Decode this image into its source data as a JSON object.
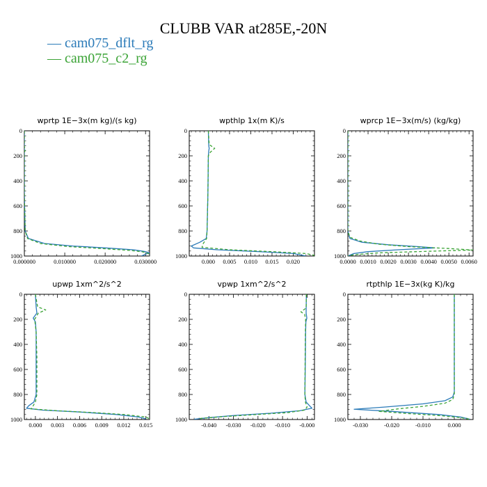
{
  "figure": {
    "title": "CLUBB VAR at285E,-20N",
    "legend": [
      {
        "name": "cam075_dflt_rg",
        "color": "#2a7ab8",
        "dash": "solid",
        "prefix": "—"
      },
      {
        "name": "cam075_c2_rg",
        "color": "#3aa335",
        "dash": "dashed",
        "prefix": "—"
      }
    ]
  },
  "chart_data": [
    {
      "type": "line",
      "title": "wprtp  1E−3x(m kg)/(s kg)",
      "xlim": [
        0,
        0.031
      ],
      "ylim": [
        1000,
        0
      ],
      "xticks": [
        0,
        0.01,
        0.02,
        0.03
      ],
      "xtick_labels": [
        "0.000000",
        "0.010000",
        "0.020000",
        "0.030000"
      ],
      "yticks": [
        0,
        200,
        400,
        600,
        800,
        1000
      ],
      "ytick_labels": [
        "0",
        "200",
        "400",
        "600",
        "800",
        "1000"
      ],
      "series": [
        {
          "name": "cam075_dflt_rg",
          "points": [
            [
              0,
              0
            ],
            [
              0,
              500
            ],
            [
              0.0002,
              800
            ],
            [
              0.001,
              860
            ],
            [
              0.005,
              900
            ],
            [
              0.012,
              920
            ],
            [
              0.02,
              935
            ],
            [
              0.027,
              950
            ],
            [
              0.03,
              965
            ],
            [
              0.031,
              975
            ],
            [
              0.03,
              985
            ],
            [
              0.029,
              1000
            ]
          ]
        },
        {
          "name": "cam075_c2_rg",
          "points": [
            [
              0,
              0
            ],
            [
              0,
              130
            ],
            [
              0.0003,
              150
            ],
            [
              0,
              170
            ],
            [
              0,
              500
            ],
            [
              0.0002,
              800
            ],
            [
              0.0008,
              860
            ],
            [
              0.004,
              900
            ],
            [
              0.011,
              925
            ],
            [
              0.019,
              940
            ],
            [
              0.026,
              955
            ],
            [
              0.029,
              965
            ],
            [
              0.03,
              972
            ],
            [
              0.031,
              985
            ],
            [
              0.031,
              1000
            ]
          ]
        }
      ]
    },
    {
      "type": "line",
      "title": "wpthlp  1x(m K)/s",
      "xlim": [
        -0.0045,
        0.025
      ],
      "ylim": [
        1000,
        0
      ],
      "xticks": [
        0,
        0.005,
        0.01,
        0.015,
        0.02
      ],
      "xtick_labels": [
        "0.000",
        "0.005",
        "0.010",
        "0.015",
        "0.020"
      ],
      "yticks": [
        0,
        200,
        400,
        600,
        800,
        1000
      ],
      "ytick_labels": [
        "0",
        "200",
        "400",
        "600",
        "800",
        "1000"
      ],
      "series": [
        {
          "name": "cam075_dflt_rg",
          "points": [
            [
              0,
              0
            ],
            [
              0.0001,
              120
            ],
            [
              0.0002,
              140
            ],
            [
              0.0001,
              160
            ],
            [
              0,
              200
            ],
            [
              -0.0001,
              500
            ],
            [
              -0.0003,
              800
            ],
            [
              -0.0005,
              860
            ],
            [
              -0.002,
              890
            ],
            [
              -0.004,
              920
            ],
            [
              -0.0035,
              935
            ],
            [
              0.002,
              950
            ],
            [
              0.012,
              965
            ],
            [
              0.02,
              980
            ],
            [
              0.023,
              1000
            ]
          ]
        },
        {
          "name": "cam075_c2_rg",
          "points": [
            [
              0,
              0
            ],
            [
              0.0002,
              110
            ],
            [
              0.0015,
              140
            ],
            [
              0.0005,
              170
            ],
            [
              0,
              200
            ],
            [
              -0.0001,
              500
            ],
            [
              -0.0003,
              800
            ],
            [
              -0.0004,
              860
            ],
            [
              -0.0012,
              900
            ],
            [
              -0.0015,
              930
            ],
            [
              0.005,
              950
            ],
            [
              0.015,
              965
            ],
            [
              0.023,
              980
            ],
            [
              0.025,
              995
            ]
          ]
        }
      ]
    },
    {
      "type": "line",
      "title": "wprcp  1E−3x(m/s) (kg/kg)",
      "xlim": [
        0,
        0.0062
      ],
      "ylim": [
        1000,
        0
      ],
      "xticks": [
        0,
        0.001,
        0.002,
        0.003,
        0.004,
        0.005,
        0.006
      ],
      "xtick_labels": [
        "0.0000",
        "0.0010",
        "0.0020",
        "0.0030",
        "0.0040",
        "0.0050",
        "0.0060"
      ],
      "yticks": [
        0,
        200,
        400,
        600,
        800,
        1000
      ],
      "ytick_labels": [
        "0",
        "200",
        "400",
        "600",
        "800",
        "1000"
      ],
      "series": [
        {
          "name": "cam075_dflt_rg",
          "points": [
            [
              0,
              0
            ],
            [
              0,
              800
            ],
            [
              0.0001,
              860
            ],
            [
              0.0007,
              890
            ],
            [
              0.002,
              910
            ],
            [
              0.0035,
              925
            ],
            [
              0.0043,
              935
            ],
            [
              0.0025,
              950
            ],
            [
              0.001,
              965
            ],
            [
              0.0003,
              980
            ],
            [
              0,
              1000
            ]
          ]
        },
        {
          "name": "cam075_c2_rg",
          "points": [
            [
              0,
              0
            ],
            [
              0,
              800
            ],
            [
              0.0001,
              850
            ],
            [
              0.0006,
              880
            ],
            [
              0.0015,
              905
            ],
            [
              0.003,
              925
            ],
            [
              0.005,
              940
            ],
            [
              0.0062,
              952
            ],
            [
              0.004,
              962
            ],
            [
              0.0015,
              975
            ],
            [
              0.0003,
              990
            ],
            [
              0,
              1000
            ]
          ]
        }
      ]
    },
    {
      "type": "line",
      "title": "upwp  1xm^2/s^2",
      "xlim": [
        -0.0015,
        0.0155
      ],
      "ylim": [
        1000,
        0
      ],
      "xticks": [
        0,
        0.003,
        0.006,
        0.009,
        0.012,
        0.015
      ],
      "xtick_labels": [
        "0.000",
        "0.003",
        "0.006",
        "0.009",
        "0.012",
        "0.015"
      ],
      "yticks": [
        0,
        200,
        400,
        600,
        800,
        1000
      ],
      "ytick_labels": [
        "0",
        "200",
        "400",
        "600",
        "800",
        "1000"
      ],
      "series": [
        {
          "name": "cam075_dflt_rg",
          "points": [
            [
              0,
              0
            ],
            [
              0.0001,
              100
            ],
            [
              0.0002,
              150
            ],
            [
              -0.0003,
              190
            ],
            [
              0,
              220
            ],
            [
              0.0001,
              300
            ],
            [
              0.0001,
              500
            ],
            [
              0.0001,
              800
            ],
            [
              -0.0002,
              860
            ],
            [
              -0.0009,
              890
            ],
            [
              -0.0012,
              910
            ],
            [
              0.001,
              925
            ],
            [
              0.006,
              940
            ],
            [
              0.011,
              960
            ],
            [
              0.014,
              980
            ],
            [
              0.015,
              995
            ]
          ]
        },
        {
          "name": "cam075_c2_rg",
          "points": [
            [
              0,
              0
            ],
            [
              0.0003,
              100
            ],
            [
              0.0014,
              125
            ],
            [
              0.0004,
              150
            ],
            [
              -0.0001,
              200
            ],
            [
              0.0001,
              300
            ],
            [
              0.0002,
              500
            ],
            [
              0.0002,
              800
            ],
            [
              0,
              860
            ],
            [
              -0.0004,
              900
            ],
            [
              -0.0006,
              915
            ],
            [
              0.003,
              930
            ],
            [
              0.008,
              945
            ],
            [
              0.012,
              960
            ],
            [
              0.015,
              980
            ],
            [
              0.0155,
              995
            ]
          ]
        }
      ]
    },
    {
      "type": "line",
      "title": "vpwp  1xm^2/s^2",
      "xlim": [
        -0.048,
        0.003
      ],
      "ylim": [
        1000,
        0
      ],
      "xticks": [
        -0.04,
        -0.03,
        -0.02,
        -0.01,
        0
      ],
      "xtick_labels": [
        "-0.040",
        "-0.030",
        "-0.020",
        "-0.010",
        "-0.000"
      ],
      "yticks": [
        0,
        200,
        400,
        600,
        800,
        1000
      ],
      "ytick_labels": [
        "0",
        "200",
        "400",
        "600",
        "800",
        "1000"
      ],
      "series": [
        {
          "name": "cam075_dflt_rg",
          "points": [
            [
              -0.0003,
              0
            ],
            [
              -0.0004,
              150
            ],
            [
              -0.0001,
              190
            ],
            [
              -0.0005,
              220
            ],
            [
              -0.0006,
              300
            ],
            [
              -0.0007,
              500
            ],
            [
              -0.0009,
              800
            ],
            [
              -0.0004,
              860
            ],
            [
              0.001,
              890
            ],
            [
              0.002,
              910
            ],
            [
              -0.003,
              930
            ],
            [
              -0.015,
              950
            ],
            [
              -0.03,
              968
            ],
            [
              -0.04,
              985
            ],
            [
              -0.046,
              998
            ]
          ]
        },
        {
          "name": "cam075_c2_rg",
          "points": [
            [
              -0.0003,
              0
            ],
            [
              -0.0004,
              110
            ],
            [
              -0.0025,
              140
            ],
            [
              -0.001,
              160
            ],
            [
              -0.0006,
              200
            ],
            [
              -0.0007,
              300
            ],
            [
              -0.0008,
              500
            ],
            [
              -0.0009,
              800
            ],
            [
              -0.0007,
              860
            ],
            [
              0,
              900
            ],
            [
              -0.001,
              925
            ],
            [
              -0.008,
              945
            ],
            [
              -0.022,
              962
            ],
            [
              -0.035,
              978
            ],
            [
              -0.044,
              992
            ]
          ]
        }
      ]
    },
    {
      "type": "line",
      "title": "rtpthlp  1E−3x(kg K)/kg",
      "xlim": [
        -0.034,
        0.006
      ],
      "ylim": [
        1000,
        0
      ],
      "xticks": [
        -0.03,
        -0.02,
        -0.01,
        0
      ],
      "xtick_labels": [
        "-0.030",
        "-0.020",
        "-0.010",
        "0.000"
      ],
      "yticks": [
        0,
        200,
        400,
        600,
        800,
        1000
      ],
      "ytick_labels": [
        "0",
        "200",
        "400",
        "600",
        "800",
        "1000"
      ],
      "series": [
        {
          "name": "cam075_dflt_rg",
          "points": [
            [
              0,
              0
            ],
            [
              0,
              500
            ],
            [
              0,
              780
            ],
            [
              -0.0005,
              820
            ],
            [
              -0.003,
              850
            ],
            [
              -0.01,
              875
            ],
            [
              -0.022,
              900
            ],
            [
              -0.032,
              918
            ],
            [
              -0.02,
              935
            ],
            [
              -0.005,
              960
            ],
            [
              0.002,
              980
            ],
            [
              0.005,
              998
            ]
          ]
        },
        {
          "name": "cam075_c2_rg",
          "points": [
            [
              0,
              0
            ],
            [
              0,
              500
            ],
            [
              0,
              800
            ],
            [
              -0.0005,
              840
            ],
            [
              -0.003,
              870
            ],
            [
              -0.01,
              895
            ],
            [
              -0.018,
              915
            ],
            [
              -0.024,
              935
            ],
            [
              -0.015,
              952
            ],
            [
              -0.004,
              970
            ],
            [
              0.002,
              985
            ],
            [
              0.005,
              998
            ]
          ]
        }
      ]
    }
  ]
}
